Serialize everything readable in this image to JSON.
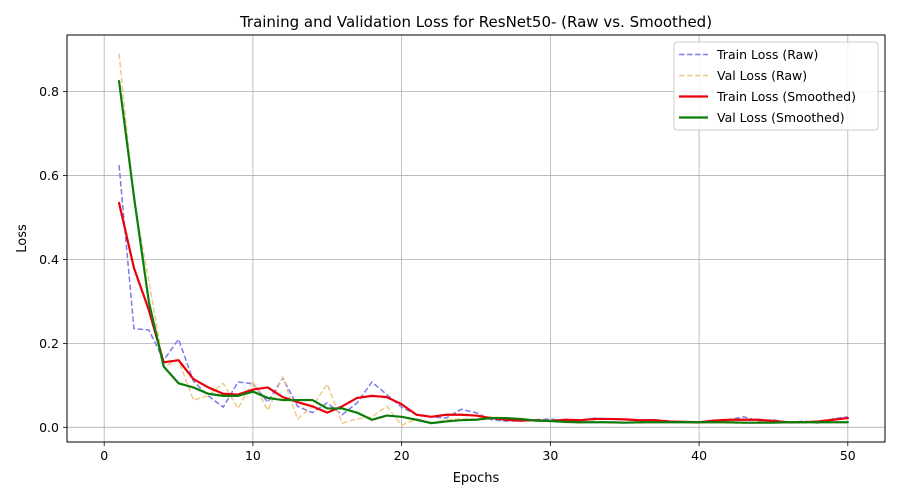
{
  "chart_data": {
    "type": "line",
    "title": "Training and Validation Loss for ResNet50- (Raw vs. Smoothed)",
    "xlabel": "Epochs",
    "ylabel": "Loss",
    "xlim": [
      -2.5,
      52.5
    ],
    "ylim": [
      -0.035,
      0.935
    ],
    "xticks": [
      0,
      10,
      20,
      30,
      40,
      50
    ],
    "yticks": [
      0.0,
      0.2,
      0.4,
      0.6,
      0.8
    ],
    "grid": true,
    "legend_position": "top-right",
    "x": [
      1,
      2,
      3,
      4,
      5,
      6,
      7,
      8,
      9,
      10,
      11,
      12,
      13,
      14,
      15,
      16,
      17,
      18,
      19,
      20,
      21,
      22,
      23,
      24,
      25,
      26,
      27,
      28,
      29,
      30,
      31,
      32,
      33,
      34,
      35,
      36,
      37,
      38,
      39,
      40,
      41,
      42,
      43,
      44,
      45,
      46,
      47,
      48,
      49,
      50
    ],
    "series": [
      {
        "name": "Train Loss (Raw)",
        "color": "#7b7bea",
        "style": "dashed",
        "values": [
          0.625,
          0.235,
          0.232,
          0.16,
          0.21,
          0.11,
          0.075,
          0.048,
          0.108,
          0.104,
          0.06,
          0.118,
          0.05,
          0.035,
          0.058,
          0.03,
          0.058,
          0.108,
          0.078,
          0.048,
          0.03,
          0.025,
          0.022,
          0.043,
          0.035,
          0.018,
          0.015,
          0.015,
          0.018,
          0.02,
          0.015,
          0.015,
          0.022,
          0.02,
          0.018,
          0.016,
          0.018,
          0.015,
          0.012,
          0.012,
          0.015,
          0.018,
          0.025,
          0.015,
          0.018,
          0.01,
          0.015,
          0.01,
          0.02,
          0.025
        ]
      },
      {
        "name": "Val Loss (Raw)",
        "color": "#f0c98a",
        "style": "dashed",
        "values": [
          0.89,
          0.54,
          0.35,
          0.145,
          0.16,
          0.065,
          0.075,
          0.105,
          0.045,
          0.11,
          0.04,
          0.12,
          0.02,
          0.05,
          0.103,
          0.01,
          0.02,
          0.025,
          0.05,
          0.005,
          0.02,
          0.01,
          0.018,
          0.02,
          0.02,
          0.025,
          0.022,
          0.02,
          0.015,
          0.015,
          0.012,
          0.01,
          0.015,
          0.01,
          0.012,
          0.01,
          0.012,
          0.012,
          0.012,
          0.01,
          0.012,
          0.01,
          0.01,
          0.01,
          0.012,
          0.012,
          0.012,
          0.012,
          0.012,
          0.012
        ]
      },
      {
        "name": "Train Loss (Smoothed)",
        "color": "#e8000b",
        "style": "solid",
        "values": [
          0.535,
          0.38,
          0.28,
          0.155,
          0.16,
          0.115,
          0.095,
          0.08,
          0.078,
          0.09,
          0.095,
          0.072,
          0.06,
          0.05,
          0.035,
          0.05,
          0.07,
          0.075,
          0.072,
          0.055,
          0.03,
          0.025,
          0.03,
          0.03,
          0.028,
          0.022,
          0.018,
          0.016,
          0.017,
          0.015,
          0.018,
          0.017,
          0.02,
          0.02,
          0.019,
          0.017,
          0.017,
          0.014,
          0.013,
          0.012,
          0.016,
          0.018,
          0.018,
          0.018,
          0.015,
          0.012,
          0.012,
          0.014,
          0.018,
          0.022
        ]
      },
      {
        "name": "Val Loss (Smoothed)",
        "color": "#0b7d0b",
        "style": "solid",
        "values": [
          0.825,
          0.55,
          0.3,
          0.145,
          0.105,
          0.095,
          0.08,
          0.075,
          0.075,
          0.085,
          0.07,
          0.065,
          0.065,
          0.065,
          0.045,
          0.045,
          0.035,
          0.018,
          0.028,
          0.025,
          0.018,
          0.01,
          0.014,
          0.017,
          0.018,
          0.022,
          0.022,
          0.02,
          0.016,
          0.015,
          0.013,
          0.012,
          0.012,
          0.012,
          0.011,
          0.012,
          0.012,
          0.012,
          0.012,
          0.012,
          0.012,
          0.012,
          0.011,
          0.011,
          0.011,
          0.012,
          0.012,
          0.012,
          0.012,
          0.012
        ]
      }
    ]
  }
}
